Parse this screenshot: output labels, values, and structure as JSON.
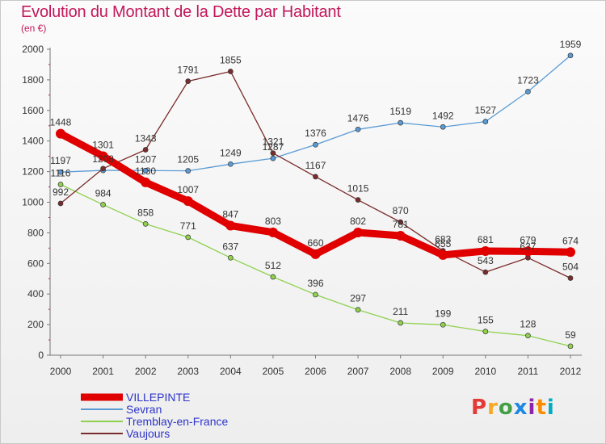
{
  "title": "Evolution du Montant de la Dette par Habitant",
  "unit": "(en €)",
  "logo": {
    "text": "Proxiti",
    "colors": [
      "#e53935",
      "#f9a825",
      "#43a047",
      "#1e88e5",
      "#8e24aa",
      "#fb8c00",
      "#00acc1"
    ]
  },
  "chart_data": {
    "type": "line",
    "title": "Evolution du Montant de la Dette par Habitant",
    "ylabel": "(en €)",
    "xlabel": "",
    "ylim": [
      0,
      2000
    ],
    "yticks": [
      0,
      200,
      400,
      600,
      800,
      1000,
      1200,
      1400,
      1600,
      1800,
      2000
    ],
    "grid": false,
    "legend_position": "bottom-left",
    "x": [
      "2000",
      "2001",
      "2002",
      "2003",
      "2004",
      "2005",
      "2006",
      "2007",
      "2008",
      "2009",
      "2010",
      "2011",
      "2012"
    ],
    "series": [
      {
        "name": "VILLEPINTE",
        "color": "#e00000",
        "values": [
          1448,
          1301,
          1130,
          1007,
          847,
          803,
          660,
          802,
          781,
          655,
          681,
          679,
          674
        ],
        "labels": [
          "1448",
          "1301",
          "1130",
          "1007",
          "847",
          "803",
          "660",
          "802",
          "781",
          "655",
          "681",
          "679",
          "674"
        ]
      },
      {
        "name": "Sevran",
        "color": "#5b9bd5",
        "values": [
          1197,
          1208,
          1207,
          1205,
          1249,
          1287,
          1376,
          1476,
          1519,
          1492,
          1527,
          1723,
          1959
        ],
        "labels": [
          "1197",
          "1208",
          "1207",
          "1205",
          "1249",
          "1287",
          "1376",
          "1476",
          "1519",
          "1492",
          "1527",
          "1723",
          "1959"
        ]
      },
      {
        "name": "Tremblay-en-France",
        "color": "#8fd14f",
        "values": [
          1116,
          984,
          858,
          771,
          637,
          512,
          396,
          297,
          211,
          199,
          155,
          128,
          59
        ],
        "labels": [
          "1116",
          "984",
          "858",
          "771",
          "637",
          "512",
          "396",
          "297",
          "211",
          "199",
          "155",
          "128",
          "59"
        ]
      },
      {
        "name": "Vaujours",
        "color": "#7b2c2c",
        "values": [
          992,
          1220,
          1343,
          1791,
          1855,
          1321,
          1167,
          1015,
          870,
          683,
          543,
          637,
          504
        ],
        "labels": [
          "992",
          "",
          "1343",
          "1791",
          "1855",
          "1321",
          "1167",
          "1015",
          "870",
          "683",
          "543",
          "637",
          "504"
        ]
      }
    ]
  }
}
